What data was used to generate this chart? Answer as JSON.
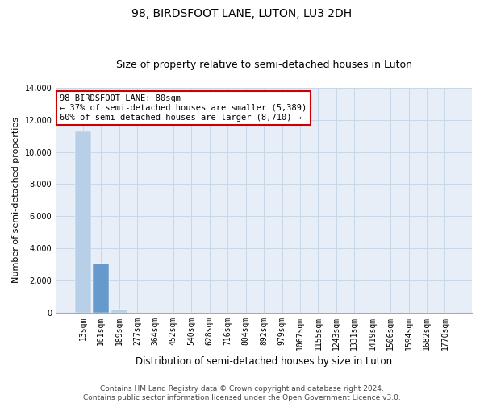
{
  "title": "98, BIRDSFOOT LANE, LUTON, LU3 2DH",
  "subtitle": "Size of property relative to semi-detached houses in Luton",
  "xlabel": "Distribution of semi-detached houses by size in Luton",
  "ylabel": "Number of semi-detached properties",
  "categories": [
    "13sqm",
    "101sqm",
    "189sqm",
    "277sqm",
    "364sqm",
    "452sqm",
    "540sqm",
    "628sqm",
    "716sqm",
    "804sqm",
    "892sqm",
    "979sqm",
    "1067sqm",
    "1155sqm",
    "1243sqm",
    "1331sqm",
    "1419sqm",
    "1506sqm",
    "1594sqm",
    "1682sqm",
    "1770sqm"
  ],
  "values": [
    11300,
    3050,
    200,
    0,
    0,
    0,
    0,
    0,
    0,
    0,
    0,
    0,
    0,
    0,
    0,
    0,
    0,
    0,
    0,
    0,
    0
  ],
  "bar_color_default": "#b8cfe8",
  "bar_color_highlight": "#6699cc",
  "highlight_index": 1,
  "ylim": [
    0,
    14000
  ],
  "yticks": [
    0,
    2000,
    4000,
    6000,
    8000,
    10000,
    12000,
    14000
  ],
  "annotation_text": "98 BIRDSFOOT LANE: 80sqm\n← 37% of semi-detached houses are smaller (5,389)\n60% of semi-detached houses are larger (8,710) →",
  "annotation_box_facecolor": "#ffffff",
  "annotation_box_edgecolor": "#cc0000",
  "grid_color": "#c8d8e8",
  "background_color": "#e8eef8",
  "footer_line1": "Contains HM Land Registry data © Crown copyright and database right 2024.",
  "footer_line2": "Contains public sector information licensed under the Open Government Licence v3.0.",
  "title_fontsize": 10,
  "subtitle_fontsize": 9,
  "xlabel_fontsize": 8.5,
  "ylabel_fontsize": 8,
  "tick_fontsize": 7,
  "footer_fontsize": 6.5,
  "annotation_fontsize": 7.5
}
